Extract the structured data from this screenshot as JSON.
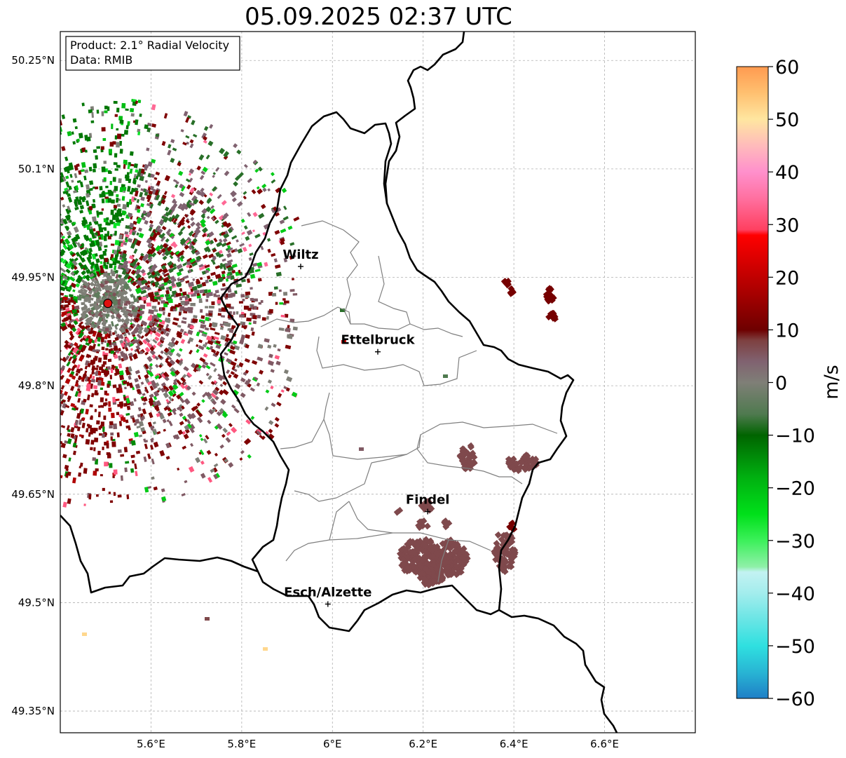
{
  "title": "05.09.2025 02:37 UTC",
  "info_box": {
    "product": "Product: 2.1° Radial Velocity",
    "data": "Data: RMIB"
  },
  "map": {
    "lon_range": [
      5.4,
      6.8
    ],
    "lat_range": [
      49.32,
      50.29
    ],
    "lon_ticks": [
      {
        "value": 5.6,
        "label": "5.6°E"
      },
      {
        "value": 5.8,
        "label": "5.8°E"
      },
      {
        "value": 6.0,
        "label": "6°E"
      },
      {
        "value": 6.2,
        "label": "6.2°E"
      },
      {
        "value": 6.4,
        "label": "6.4°E"
      },
      {
        "value": 6.6,
        "label": "6.6°E"
      }
    ],
    "lat_ticks": [
      {
        "value": 50.25,
        "label": "50.25°N"
      },
      {
        "value": 50.1,
        "label": "50.1°N"
      },
      {
        "value": 49.95,
        "label": "49.95°N"
      },
      {
        "value": 49.8,
        "label": "49.8°N"
      },
      {
        "value": 49.65,
        "label": "49.65°N"
      },
      {
        "value": 49.5,
        "label": "49.5°N"
      },
      {
        "value": 49.35,
        "label": "49.35°N"
      }
    ],
    "cities": [
      {
        "name": "Wiltz",
        "lon": 5.93,
        "lat": 49.965
      },
      {
        "name": "Ettelbruck",
        "lon": 6.1,
        "lat": 49.847
      },
      {
        "name": "Findel",
        "lon": 6.21,
        "lat": 49.626
      },
      {
        "name": "Esch/Alzette",
        "lon": 5.99,
        "lat": 49.498
      }
    ],
    "radar_site": {
      "lon": 5.505,
      "lat": 49.914
    },
    "grid": true
  },
  "colorbar": {
    "label": "m/s",
    "min": -60,
    "max": 60,
    "ticks": [
      {
        "value": 60,
        "label": "60"
      },
      {
        "value": 50,
        "label": "50"
      },
      {
        "value": 40,
        "label": "40"
      },
      {
        "value": 30,
        "label": "30"
      },
      {
        "value": 20,
        "label": "20"
      },
      {
        "value": 10,
        "label": "10"
      },
      {
        "value": 0,
        "label": "0"
      },
      {
        "value": -10,
        "label": "−10"
      },
      {
        "value": -20,
        "label": "−20"
      },
      {
        "value": -30,
        "label": "−30"
      },
      {
        "value": -40,
        "label": "−40"
      },
      {
        "value": -50,
        "label": "−50"
      },
      {
        "value": -60,
        "label": "−60"
      }
    ],
    "stops": [
      {
        "value": -60,
        "color": "#1f7fc6"
      },
      {
        "value": -55,
        "color": "#28b5d4"
      },
      {
        "value": -50,
        "color": "#2fe0e0"
      },
      {
        "value": -45,
        "color": "#6ae5e5"
      },
      {
        "value": -40,
        "color": "#a3eded"
      },
      {
        "value": -36,
        "color": "#c3f2f2"
      },
      {
        "value": -35,
        "color": "#8ff0a8"
      },
      {
        "value": -30,
        "color": "#3cf05a"
      },
      {
        "value": -25,
        "color": "#00e01a"
      },
      {
        "value": -18,
        "color": "#00b010"
      },
      {
        "value": -10,
        "color": "#006400"
      },
      {
        "value": -6,
        "color": "#4f7a4f"
      },
      {
        "value": 0,
        "color": "#7f7f77"
      },
      {
        "value": 4,
        "color": "#806270"
      },
      {
        "value": 8,
        "color": "#7e4040"
      },
      {
        "value": 10,
        "color": "#6e0000"
      },
      {
        "value": 18,
        "color": "#b00000"
      },
      {
        "value": 28,
        "color": "#ff0000"
      },
      {
        "value": 29,
        "color": "#ff4060"
      },
      {
        "value": 35,
        "color": "#ff70a0"
      },
      {
        "value": 40,
        "color": "#ff90cc"
      },
      {
        "value": 45,
        "color": "#ffbbbb"
      },
      {
        "value": 50,
        "color": "#ffe6a0"
      },
      {
        "value": 55,
        "color": "#ffc070"
      },
      {
        "value": 60,
        "color": "#ff9a50"
      }
    ]
  }
}
